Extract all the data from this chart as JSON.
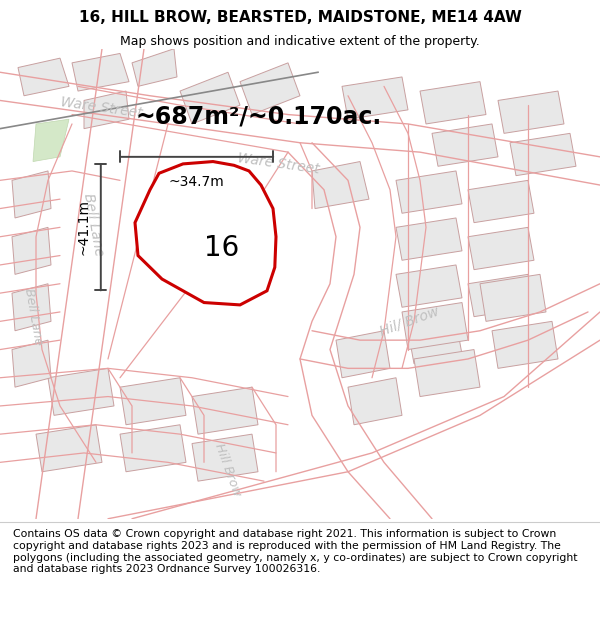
{
  "title": "16, HILL BROW, BEARSTED, MAIDSTONE, ME14 4AW",
  "subtitle": "Map shows position and indicative extent of the property.",
  "area_label": "~687m²/~0.170ac.",
  "property_number": "16",
  "dim_width": "~34.7m",
  "dim_height": "~41.1m",
  "map_bg": "#ffffff",
  "building_fill": "#e8e8e8",
  "building_edge": "#c8a0a0",
  "road_line_color": "#e8a0a0",
  "road_line_color2": "#d08080",
  "green_fill": "#d4e8c8",
  "green_edge": "#c0d8b0",
  "property_fill": "#ffffff",
  "property_outline": "#cc0000",
  "dim_line_color": "#444444",
  "road_label_color": "#c0c0c0",
  "footer_text": "Contains OS data © Crown copyright and database right 2021. This information is subject to Crown copyright and database rights 2023 and is reproduced with the permission of HM Land Registry. The polygons (including the associated geometry, namely x, y co-ordinates) are subject to Crown copyright and database rights 2023 Ordnance Survey 100026316.",
  "title_fontsize": 11,
  "subtitle_fontsize": 9,
  "footer_fontsize": 7.8,
  "area_label_fontsize": 17,
  "dim_fontsize": 10,
  "property_label_fontsize": 20,
  "road_label_fontsize": 10,
  "small_road_label_fontsize": 9
}
